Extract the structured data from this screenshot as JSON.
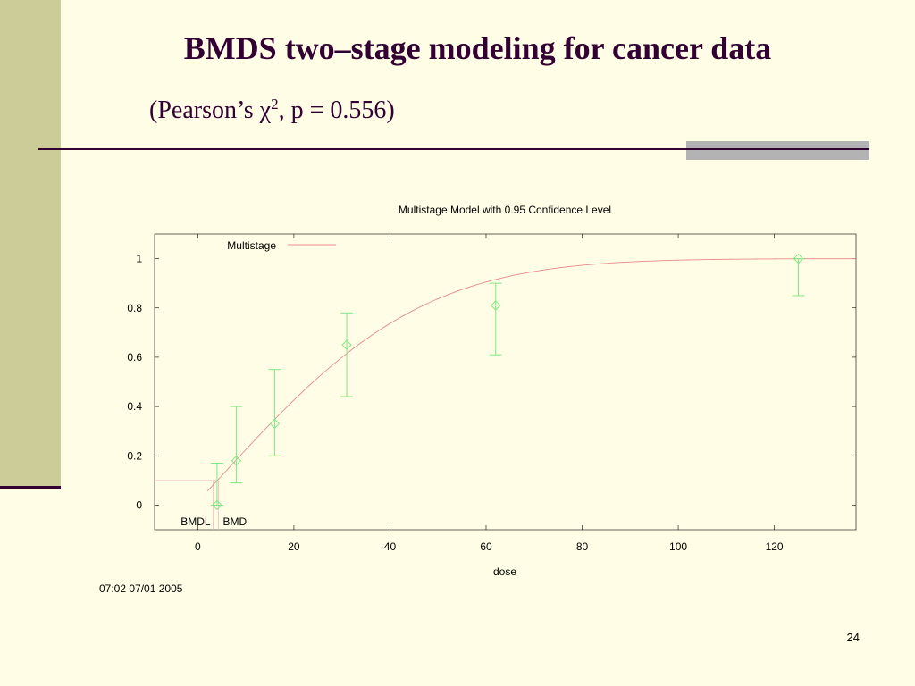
{
  "slide": {
    "title": "BMDS two–stage modeling for cancer data",
    "subtitle_prefix": "(Pearson’s χ",
    "subtitle_sup": "2",
    "subtitle_suffix": ", p = 0.556)",
    "timestamp": "07:02 07/01 2005",
    "page_number": "24"
  },
  "colors": {
    "background": "#fffde6",
    "band": "#cccc99",
    "title": "#330033",
    "model_curve": "#e88a8a",
    "data_points": "#80e880",
    "bmd_line": "#f0c0c0"
  },
  "chart_data": {
    "type": "scatter",
    "title": "Multistage Model with 0.95 Confidence Level",
    "xlabel": "dose",
    "ylabel": "",
    "xlim": [
      -9,
      137
    ],
    "ylim": [
      -0.1,
      1.1
    ],
    "x_ticks": [
      0,
      20,
      40,
      60,
      80,
      100,
      120
    ],
    "x_tick_labels": [
      "0",
      "20",
      "40",
      "60",
      "80",
      "100",
      "120"
    ],
    "y_ticks": [
      0,
      0.2,
      0.4,
      0.6,
      0.8,
      1
    ],
    "y_tick_labels": [
      "0",
      "0.2",
      "0.4",
      "0.6",
      "0.8",
      "1"
    ],
    "grid": false,
    "legend": {
      "position": "top-left",
      "label": "Multistage"
    },
    "model": {
      "name": "Multistage",
      "background": 0.015,
      "beta1": 0.021,
      "beta2": 0.0003,
      "x_start": 2,
      "x_end": 137
    },
    "points": [
      {
        "x": 4,
        "y": 0,
        "lower": 0,
        "upper": 0.17
      },
      {
        "x": 8,
        "y": 0.18,
        "lower": 0.09,
        "upper": 0.4
      },
      {
        "x": 16,
        "y": 0.33,
        "lower": 0.2,
        "upper": 0.55
      },
      {
        "x": 31,
        "y": 0.65,
        "lower": 0.44,
        "upper": 0.78
      },
      {
        "x": 62,
        "y": 0.81,
        "lower": 0.61,
        "upper": 0.9
      },
      {
        "x": 125,
        "y": 1,
        "lower": 0.85,
        "upper": 1
      }
    ],
    "bmr_level": 0.1,
    "bmdl": {
      "label": "BMDL",
      "x": 3.2
    },
    "bmd": {
      "label": "BMD",
      "x": 4.3
    }
  }
}
